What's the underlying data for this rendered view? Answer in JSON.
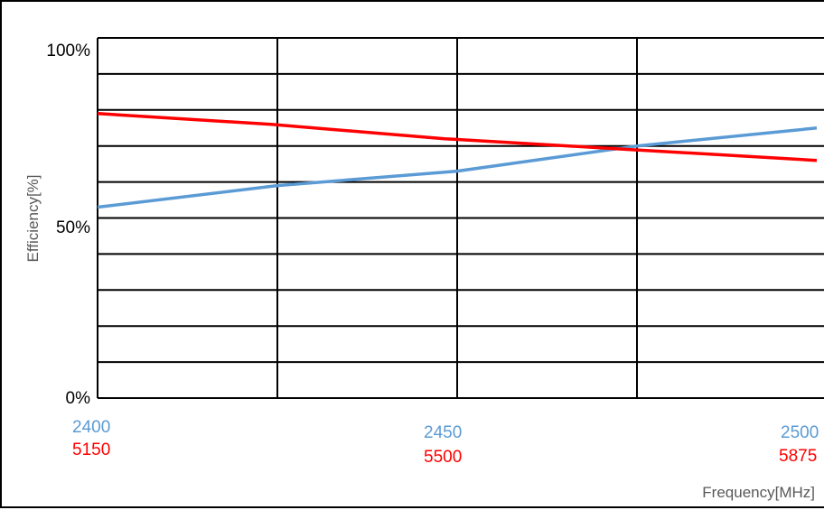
{
  "chart_data": {
    "type": "line",
    "xlabel": "Frequency[MHz]",
    "ylabel": "Efficiency[%]",
    "ylim": [
      0,
      100
    ],
    "grid": true,
    "y_ticks": [
      {
        "value": 100,
        "label": "100%"
      },
      {
        "value": 50,
        "label": "50%"
      },
      {
        "value": 0,
        "label": "0%"
      }
    ],
    "x_axes": [
      {
        "color": "#5b9bd5",
        "ticks": [
          "2400",
          "2450",
          "2500"
        ],
        "range": [
          2400,
          2500
        ]
      },
      {
        "color": "#ff0000",
        "ticks": [
          "5150",
          "5500",
          "5875"
        ],
        "range": [
          5150,
          5875
        ]
      }
    ],
    "series": [
      {
        "color": "#5b9bd5",
        "axis": 0,
        "x": [
          2400,
          2425,
          2450,
          2475,
          2500
        ],
        "y": [
          53,
          59,
          63,
          70,
          75
        ]
      },
      {
        "color": "#ff0000",
        "axis": 1,
        "x": [
          5150,
          5325,
          5500,
          5687.5,
          5875
        ],
        "y": [
          79,
          76,
          72,
          69,
          66
        ]
      }
    ]
  }
}
